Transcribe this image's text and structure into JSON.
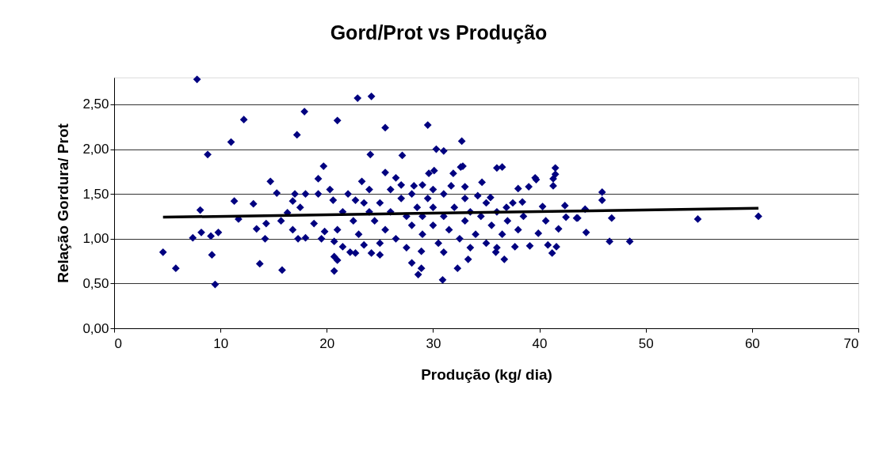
{
  "chart_data": {
    "type": "scatter",
    "title": "Gord/Prot  vs Produção",
    "xlabel": "Produção  (kg/ dia)",
    "ylabel": "Relação Gordura/ Prot",
    "xlim": [
      0,
      70
    ],
    "xticks": [
      0,
      10,
      20,
      30,
      40,
      50,
      60,
      70
    ],
    "ylim": [
      0,
      2.8
    ],
    "yticks": [
      {
        "value": 0,
        "label": "0,00"
      },
      {
        "value": 0.5,
        "label": "0,50"
      },
      {
        "value": 1,
        "label": "1,00"
      },
      {
        "value": 1.5,
        "label": "1,50"
      },
      {
        "value": 2,
        "label": "2,00"
      },
      {
        "value": 2.5,
        "label": "2,50"
      }
    ],
    "grid": "y",
    "series": [
      {
        "marker": "diamond",
        "color": "#000080",
        "x": [
          7.8,
          22.9,
          24.2,
          12.2,
          17.9,
          11.0,
          21.0,
          8.8,
          17.2,
          25.5,
          29.5,
          32.7,
          30.3,
          31.0,
          24.1,
          27.1,
          32.6,
          19.7,
          36.0,
          36.5,
          14.7,
          34.6,
          39.6,
          41.5,
          45.9,
          45.9,
          43.5,
          44.3,
          44.4,
          46.6,
          48.5,
          54.9,
          60.6,
          46.8,
          41.5,
          41.3,
          41.3,
          39.7,
          39.0,
          38.0,
          42.4,
          42.5,
          41.8,
          41.6,
          41.2,
          40.8,
          39.1,
          37.7,
          36.7,
          35.9,
          40.3,
          40.6,
          39.9,
          43.6,
          28.0,
          28.9,
          28.6,
          30.9,
          32.3,
          33.3,
          28.9,
          24.2,
          25.0,
          23.5,
          22.7,
          21.0,
          20.7,
          25.5,
          26.5,
          29.6,
          30.1,
          31.9,
          32.8,
          23.3,
          24.0,
          28.2,
          31.7,
          33.0,
          34.2,
          35.4,
          36.9,
          38.4,
          22.0,
          22.7,
          4.6,
          5.8,
          9.5,
          9.2,
          7.4,
          8.2,
          9.1,
          9.8,
          8.1,
          11.3,
          11.7,
          13.1,
          13.4,
          14.2,
          13.7,
          15.8,
          15.3,
          14.3,
          15.7,
          17.0,
          18.0,
          16.8,
          17.5,
          16.3,
          16.8,
          17.3,
          18.0,
          19.2,
          19.2,
          20.3,
          20.6,
          18.8,
          19.8,
          19.5,
          20.7,
          21.5,
          22.2,
          20.7,
          24.0,
          24.5,
          25.0,
          25.5,
          26.0,
          26.5,
          27.0,
          27.5,
          28.0,
          28.0,
          28.5,
          29.0,
          29.0,
          29.5,
          30.0,
          30.0,
          30.5,
          31.0,
          31.0,
          31.5,
          32.0,
          32.5,
          33.0,
          33.0,
          33.5,
          34.0,
          34.5,
          35.0,
          35.0,
          35.5,
          36.0,
          36.5,
          37.0,
          37.5,
          38.0,
          38.5,
          22.5,
          23.0,
          23.5,
          21.5,
          21.0,
          26.0,
          27.0,
          29.0,
          30.0,
          25.0,
          27.5,
          31.0,
          33.5,
          36.0
        ],
        "values": [
          2.78,
          2.57,
          2.59,
          2.33,
          2.42,
          2.08,
          2.32,
          1.94,
          2.16,
          2.24,
          2.27,
          2.09,
          2.0,
          1.98,
          1.94,
          1.93,
          1.8,
          1.81,
          1.79,
          1.8,
          1.64,
          1.63,
          1.68,
          1.72,
          1.52,
          1.43,
          1.23,
          1.33,
          1.07,
          0.97,
          0.97,
          1.22,
          1.25,
          1.23,
          1.79,
          1.67,
          1.59,
          1.66,
          1.58,
          1.56,
          1.37,
          1.24,
          1.11,
          0.91,
          0.84,
          0.93,
          0.92,
          0.91,
          0.77,
          0.85,
          1.36,
          1.2,
          1.06,
          1.23,
          0.73,
          0.67,
          0.6,
          0.54,
          0.67,
          0.77,
          0.86,
          0.84,
          0.82,
          0.93,
          0.84,
          0.76,
          0.64,
          1.74,
          1.68,
          1.73,
          1.76,
          1.73,
          1.81,
          1.64,
          1.55,
          1.59,
          1.59,
          1.58,
          1.48,
          1.46,
          1.35,
          1.41,
          1.5,
          1.43,
          0.85,
          0.67,
          0.49,
          0.82,
          1.01,
          1.07,
          1.03,
          1.07,
          1.32,
          1.42,
          1.22,
          1.39,
          1.11,
          1.0,
          0.72,
          0.65,
          1.51,
          1.17,
          1.2,
          1.5,
          1.5,
          1.42,
          1.35,
          1.29,
          1.1,
          1.0,
          1.01,
          1.67,
          1.5,
          1.55,
          1.43,
          1.17,
          1.08,
          1.0,
          0.97,
          0.91,
          0.85,
          0.8,
          1.3,
          1.2,
          1.4,
          1.1,
          1.3,
          1.0,
          1.45,
          1.25,
          1.15,
          1.5,
          1.35,
          1.05,
          1.25,
          1.45,
          1.15,
          1.35,
          0.95,
          1.25,
          1.5,
          1.1,
          1.35,
          1.0,
          1.2,
          1.45,
          1.3,
          1.05,
          1.25,
          1.4,
          0.95,
          1.15,
          1.3,
          1.05,
          1.2,
          1.4,
          1.1,
          1.25,
          1.2,
          1.05,
          1.4,
          1.3,
          1.1,
          1.55,
          1.6,
          1.6,
          1.55,
          0.95,
          0.9,
          0.85,
          0.9,
          0.9
        ]
      },
      {
        "type": "line",
        "color": "#000000",
        "line_style": "solid",
        "x": [
          4.6,
          60.6
        ],
        "values": [
          1.24,
          1.34
        ]
      }
    ]
  }
}
